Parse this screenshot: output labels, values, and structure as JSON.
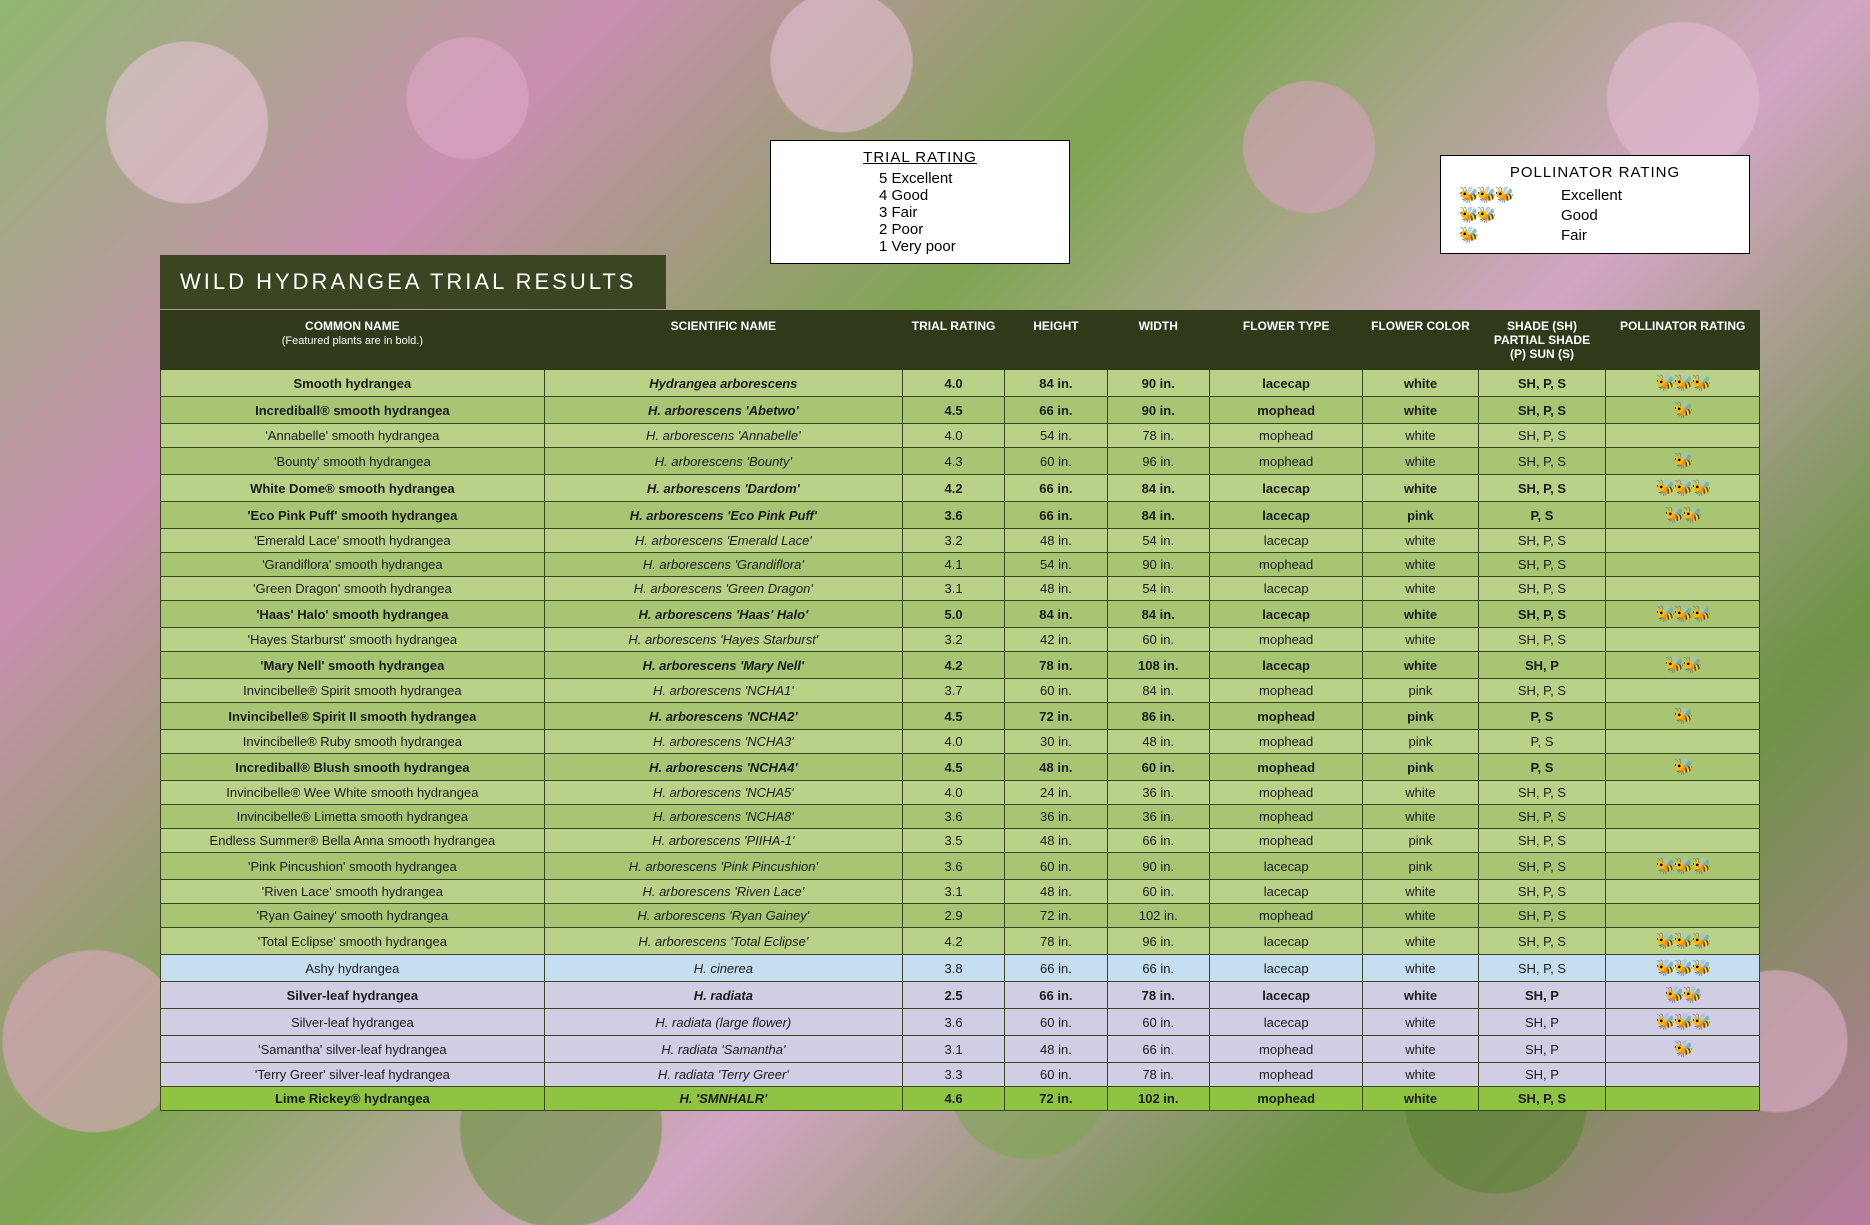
{
  "title": "WILD HYDRANGEA TRIAL RESULTS",
  "trial_legend": {
    "title": "TRIAL RATING",
    "rows": [
      {
        "n": "5",
        "l": "Excellent"
      },
      {
        "n": "4",
        "l": "Good"
      },
      {
        "n": "3",
        "l": "Fair"
      },
      {
        "n": "2",
        "l": "Poor"
      },
      {
        "n": "1",
        "l": "Very poor"
      }
    ]
  },
  "poll_legend": {
    "title": "POLLINATOR RATING",
    "rows": [
      {
        "bees": 3,
        "l": "Excellent"
      },
      {
        "bees": 2,
        "l": "Good"
      },
      {
        "bees": 1,
        "l": "Fair"
      }
    ]
  },
  "headers": {
    "common": "COMMON NAME",
    "common_sub": "(Featured plants are in bold.)",
    "sci": "SCIENTIFIC NAME",
    "rating": "TRIAL RATING",
    "height": "HEIGHT",
    "width": "WIDTH",
    "flower": "FLOWER TYPE",
    "color": "FLOWER COLOR",
    "shade": "SHADE (SH) PARTIAL SHADE (P) SUN (S)",
    "poll": "POLLINATOR RATING"
  },
  "colors": {
    "green_light": "#b9d288",
    "green_med": "#a8c574",
    "blue_light": "#c5dff0",
    "lavender": "#d0cde5",
    "lime": "#8fc443"
  },
  "rows": [
    {
      "bold": true,
      "bg": "green_light",
      "common": "Smooth hydrangea",
      "sci": "Hydrangea arborescens",
      "rating": "4.0",
      "h": "84 in.",
      "w": "90 in.",
      "flower": "lacecap",
      "color": "white",
      "shade": "SH, P, S",
      "bees": 3
    },
    {
      "bold": true,
      "bg": "green_med",
      "common": "Incrediball® smooth hydrangea",
      "sci": "H. arborescens 'Abetwo'",
      "rating": "4.5",
      "h": "66 in.",
      "w": "90 in.",
      "flower": "mophead",
      "color": "white",
      "shade": "SH, P, S",
      "bees": 1
    },
    {
      "bold": false,
      "bg": "green_light",
      "common": "'Annabelle' smooth hydrangea",
      "sci": "H. arborescens 'Annabelle'",
      "rating": "4.0",
      "h": "54 in.",
      "w": "78 in.",
      "flower": "mophead",
      "color": "white",
      "shade": "SH, P, S",
      "bees": 0
    },
    {
      "bold": false,
      "bg": "green_med",
      "common": "'Bounty' smooth hydrangea",
      "sci": "H. arborescens 'Bounty'",
      "rating": "4.3",
      "h": "60 in.",
      "w": "96 in.",
      "flower": "mophead",
      "color": "white",
      "shade": "SH, P, S",
      "bees": 1
    },
    {
      "bold": true,
      "bg": "green_light",
      "common": "White Dome® smooth hydrangea",
      "sci": "H. arborescens 'Dardom'",
      "rating": "4.2",
      "h": "66 in.",
      "w": "84 in.",
      "flower": "lacecap",
      "color": "white",
      "shade": "SH, P, S",
      "bees": 3
    },
    {
      "bold": true,
      "bg": "green_med",
      "common": "'Eco Pink Puff' smooth hydrangea",
      "sci": "H. arborescens 'Eco Pink Puff'",
      "rating": "3.6",
      "h": "66 in.",
      "w": "84 in.",
      "flower": "lacecap",
      "color": "pink",
      "shade": "P, S",
      "bees": 2
    },
    {
      "bold": false,
      "bg": "green_light",
      "common": "'Emerald Lace' smooth hydrangea",
      "sci": "H. arborescens 'Emerald Lace'",
      "rating": "3.2",
      "h": "48 in.",
      "w": "54 in.",
      "flower": "lacecap",
      "color": "white",
      "shade": "SH, P, S",
      "bees": 0
    },
    {
      "bold": false,
      "bg": "green_med",
      "common": "'Grandiflora' smooth hydrangea",
      "sci": "H. arborescens 'Grandiflora'",
      "rating": "4.1",
      "h": "54 in.",
      "w": "90 in.",
      "flower": "mophead",
      "color": "white",
      "shade": "SH, P, S",
      "bees": 0
    },
    {
      "bold": false,
      "bg": "green_light",
      "common": "'Green Dragon' smooth hydrangea",
      "sci": "H. arborescens 'Green Dragon'",
      "rating": "3.1",
      "h": "48 in.",
      "w": "54 in.",
      "flower": "lacecap",
      "color": "white",
      "shade": "SH, P, S",
      "bees": 0
    },
    {
      "bold": true,
      "bg": "green_med",
      "common": "'Haas' Halo' smooth hydrangea",
      "sci": "H. arborescens 'Haas' Halo'",
      "rating": "5.0",
      "h": "84 in.",
      "w": "84 in.",
      "flower": "lacecap",
      "color": "white",
      "shade": "SH, P, S",
      "bees": 3
    },
    {
      "bold": false,
      "bg": "green_light",
      "common": "'Hayes Starburst' smooth hydrangea",
      "sci": "H. arborescens 'Hayes Starburst'",
      "rating": "3.2",
      "h": "42 in.",
      "w": "60 in.",
      "flower": "mophead",
      "color": "white",
      "shade": "SH, P, S",
      "bees": 0
    },
    {
      "bold": true,
      "bg": "green_med",
      "common": "'Mary Nell' smooth hydrangea",
      "sci": "H. arborescens 'Mary Nell'",
      "rating": "4.2",
      "h": "78 in.",
      "w": "108 in.",
      "flower": "lacecap",
      "color": "white",
      "shade": "SH, P",
      "bees": 2
    },
    {
      "bold": false,
      "bg": "green_light",
      "common": "Invincibelle® Spirit smooth hydrangea",
      "sci": "H. arborescens 'NCHA1'",
      "rating": "3.7",
      "h": "60 in.",
      "w": "84 in.",
      "flower": "mophead",
      "color": "pink",
      "shade": "SH, P, S",
      "bees": 0
    },
    {
      "bold": true,
      "bg": "green_med",
      "common": "Invincibelle® Spirit II smooth hydrangea",
      "sci": "H. arborescens 'NCHA2'",
      "rating": "4.5",
      "h": "72 in.",
      "w": "86 in.",
      "flower": "mophead",
      "color": "pink",
      "shade": "P, S",
      "bees": 1
    },
    {
      "bold": false,
      "bg": "green_light",
      "common": "Invincibelle® Ruby smooth hydrangea",
      "sci": "H. arborescens 'NCHA3'",
      "rating": "4.0",
      "h": "30 in.",
      "w": "48 in.",
      "flower": "mophead",
      "color": "pink",
      "shade": "P, S",
      "bees": 0
    },
    {
      "bold": true,
      "bg": "green_med",
      "common": "Incrediball® Blush smooth hydrangea",
      "sci": "H. arborescens 'NCHA4'",
      "rating": "4.5",
      "h": "48 in.",
      "w": "60 in.",
      "flower": "mophead",
      "color": "pink",
      "shade": "P, S",
      "bees": 1
    },
    {
      "bold": false,
      "bg": "green_light",
      "common": "Invincibelle® Wee White smooth hydrangea",
      "sci": "H. arborescens 'NCHA5'",
      "rating": "4.0",
      "h": "24 in.",
      "w": "36 in.",
      "flower": "mophead",
      "color": "white",
      "shade": "SH, P, S",
      "bees": 0
    },
    {
      "bold": false,
      "bg": "green_med",
      "common": "Invincibelle® Limetta smooth hydrangea",
      "sci": "H. arborescens 'NCHA8'",
      "rating": "3.6",
      "h": "36 in.",
      "w": "36 in.",
      "flower": "mophead",
      "color": "white",
      "shade": "SH, P, S",
      "bees": 0
    },
    {
      "bold": false,
      "bg": "green_light",
      "common": "Endless Summer® Bella Anna smooth hydrangea",
      "sci": "H. arborescens 'PIIHA-1'",
      "rating": "3.5",
      "h": "48 in.",
      "w": "66 in.",
      "flower": "mophead",
      "color": "pink",
      "shade": "SH, P, S",
      "bees": 0
    },
    {
      "bold": false,
      "bg": "green_med",
      "common": "'Pink Pincushion' smooth hydrangea",
      "sci": "H. arborescens 'Pink Pincushion'",
      "rating": "3.6",
      "h": "60 in.",
      "w": "90 in.",
      "flower": "lacecap",
      "color": "pink",
      "shade": "SH, P, S",
      "bees": 3
    },
    {
      "bold": false,
      "bg": "green_light",
      "common": "'Riven Lace' smooth hydrangea",
      "sci": "H. arborescens 'Riven Lace'",
      "rating": "3.1",
      "h": "48 in.",
      "w": "60 in.",
      "flower": "lacecap",
      "color": "white",
      "shade": "SH, P, S",
      "bees": 0
    },
    {
      "bold": false,
      "bg": "green_med",
      "common": "'Ryan Gainey' smooth hydrangea",
      "sci": "H. arborescens 'Ryan Gainey'",
      "rating": "2.9",
      "h": "72 in.",
      "w": "102 in.",
      "flower": "mophead",
      "color": "white",
      "shade": "SH, P, S",
      "bees": 0
    },
    {
      "bold": false,
      "bg": "green_light",
      "common": "'Total Eclipse' smooth hydrangea",
      "sci": "H. arborescens 'Total Eclipse'",
      "rating": "4.2",
      "h": "78 in.",
      "w": "96 in.",
      "flower": "lacecap",
      "color": "white",
      "shade": "SH, P, S",
      "bees": 3
    },
    {
      "bold": false,
      "bg": "blue_light",
      "common": "Ashy hydrangea",
      "sci": "H. cinerea",
      "rating": "3.8",
      "h": "66 in.",
      "w": "66 in.",
      "flower": "lacecap",
      "color": "white",
      "shade": "SH, P, S",
      "bees": 3
    },
    {
      "bold": true,
      "bg": "lavender",
      "common": "Silver-leaf hydrangea",
      "sci": "H. radiata",
      "rating": "2.5",
      "h": "66 in.",
      "w": "78 in.",
      "flower": "lacecap",
      "color": "white",
      "shade": "SH, P",
      "bees": 2
    },
    {
      "bold": false,
      "bg": "lavender",
      "common": "Silver-leaf hydrangea",
      "sci": "H. radiata (large flower)",
      "rating": "3.6",
      "h": "60 in.",
      "w": "60 in.",
      "flower": "lacecap",
      "color": "white",
      "shade": "SH, P",
      "bees": 3
    },
    {
      "bold": false,
      "bg": "lavender",
      "common": "'Samantha' silver-leaf hydrangea",
      "sci": "H. radiata 'Samantha'",
      "rating": "3.1",
      "h": "48 in.",
      "w": "66 in.",
      "flower": "mophead",
      "color": "white",
      "shade": "SH, P",
      "bees": 1
    },
    {
      "bold": false,
      "bg": "lavender",
      "common": "'Terry Greer' silver-leaf hydrangea",
      "sci": "H. radiata 'Terry Greer'",
      "rating": "3.3",
      "h": "60 in.",
      "w": "78 in.",
      "flower": "mophead",
      "color": "white",
      "shade": "SH, P",
      "bees": 0
    },
    {
      "bold": true,
      "bg": "lime",
      "common": "Lime Rickey® hydrangea",
      "sci": "H. 'SMNHALR'",
      "rating": "4.6",
      "h": "72 in.",
      "w": "102 in.",
      "flower": "mophead",
      "color": "white",
      "shade": "SH, P, S",
      "bees": 0
    }
  ]
}
